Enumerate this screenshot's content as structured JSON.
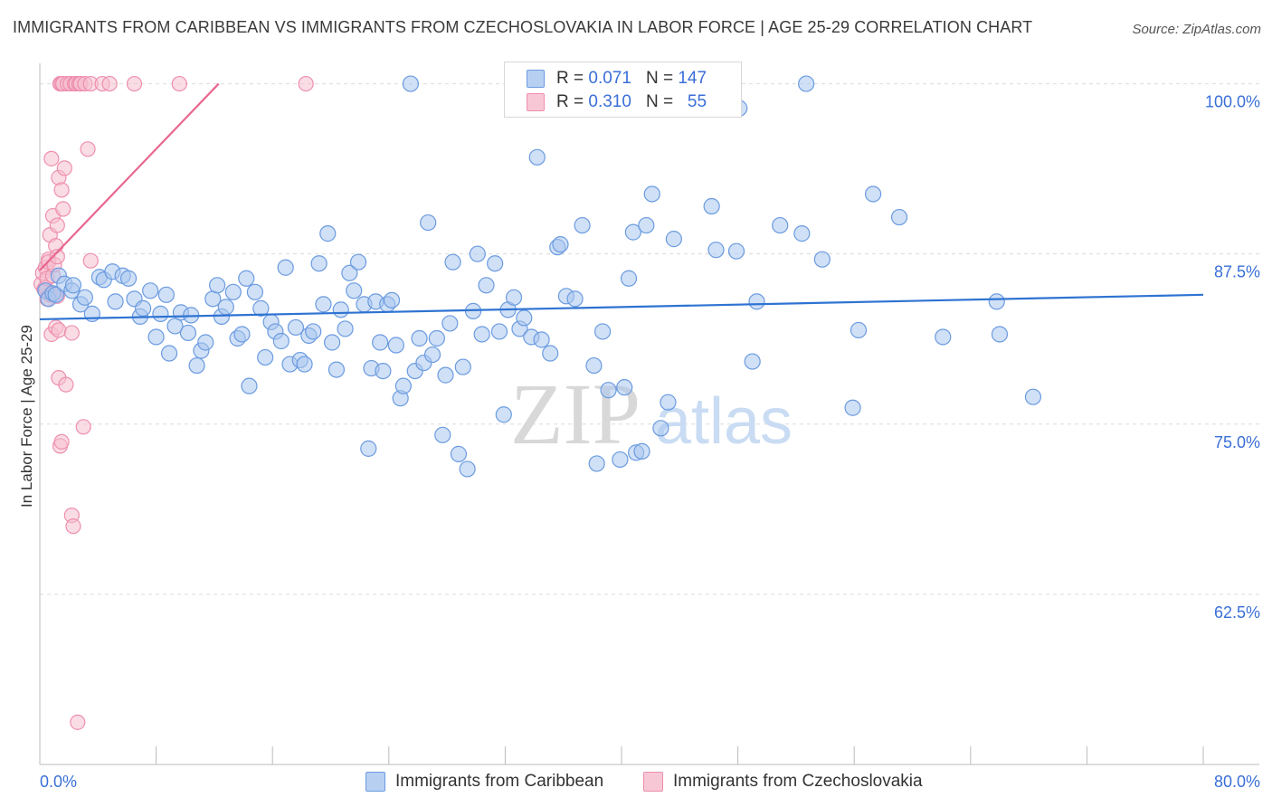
{
  "header": {
    "title": "IMMIGRANTS FROM CARIBBEAN VS IMMIGRANTS FROM CZECHOSLOVAKIA IN LABOR FORCE | AGE 25-29 CORRELATION CHART",
    "source": "Source: ZipAtlas.com"
  },
  "legend": {
    "r_label": "R =",
    "n_label": "N =",
    "caribbean": {
      "r": "0.071",
      "n": "147"
    },
    "czech": {
      "r": "0.310",
      "n": "55"
    }
  },
  "bottom_legend": {
    "caribbean": "Immigrants from Caribbean",
    "czech": "Immigrants from Czechoslovakia"
  },
  "watermark": {
    "zip": "ZIP",
    "atlas": "atlas"
  },
  "colors": {
    "caribbean_fill": "#a9c6ee",
    "caribbean_stroke": "#6b9be0",
    "caribbean_line": "#2e73d2",
    "czech_fill": "#f6bfd0",
    "czech_stroke": "#ee8fae",
    "czech_line": "#e8678f",
    "tick_label": "#3a6fd8",
    "grid": "#dcdcdc"
  },
  "chart_data": {
    "type": "scatter",
    "title": "IMMIGRANTS FROM CARIBBEAN VS IMMIGRANTS FROM CZECHOSLOVAKIA IN LABOR FORCE | AGE 25-29 CORRELATION CHART",
    "xlabel": "",
    "ylabel": "In Labor Force | Age 25-29",
    "xlim": [
      0,
      80
    ],
    "ylim": [
      50,
      101.5
    ],
    "x_tick_labels": [
      "0.0%",
      "80.0%"
    ],
    "y_ticks": [
      62.5,
      75,
      87.5,
      100
    ],
    "y_tick_labels": [
      "62.5%",
      "75.0%",
      "87.5%",
      "100.0%"
    ],
    "grid": true,
    "series": [
      {
        "name": "Immigrants from Caribbean",
        "r": 0.071,
        "n": 147,
        "trend": {
          "x": [
            0,
            80
          ],
          "y": [
            82.7,
            84.5
          ]
        },
        "points": [
          [
            0.4,
            84.8
          ],
          [
            0.6,
            84.2
          ],
          [
            0.9,
            84.6
          ],
          [
            1.1,
            84.5
          ],
          [
            1.3,
            85.9
          ],
          [
            1.7,
            85.3
          ],
          [
            2.2,
            84.8
          ],
          [
            2.3,
            85.2
          ],
          [
            2.8,
            83.8
          ],
          [
            3.1,
            84.3
          ],
          [
            3.6,
            83.1
          ],
          [
            4.1,
            85.8
          ],
          [
            4.4,
            85.6
          ],
          [
            5.0,
            86.2
          ],
          [
            5.2,
            84.0
          ],
          [
            5.7,
            85.9
          ],
          [
            6.1,
            85.7
          ],
          [
            6.5,
            84.2
          ],
          [
            6.9,
            82.9
          ],
          [
            7.1,
            83.5
          ],
          [
            7.6,
            84.8
          ],
          [
            8.0,
            81.4
          ],
          [
            8.3,
            83.1
          ],
          [
            8.7,
            84.5
          ],
          [
            8.9,
            80.2
          ],
          [
            9.3,
            82.2
          ],
          [
            9.7,
            83.2
          ],
          [
            10.2,
            81.7
          ],
          [
            10.4,
            83.0
          ],
          [
            10.8,
            79.3
          ],
          [
            11.1,
            80.4
          ],
          [
            11.4,
            81.0
          ],
          [
            11.9,
            84.2
          ],
          [
            12.2,
            85.2
          ],
          [
            12.5,
            82.9
          ],
          [
            12.8,
            83.6
          ],
          [
            13.3,
            84.7
          ],
          [
            13.6,
            81.3
          ],
          [
            13.9,
            81.6
          ],
          [
            14.2,
            85.7
          ],
          [
            14.4,
            77.8
          ],
          [
            14.8,
            84.7
          ],
          [
            15.2,
            83.5
          ],
          [
            15.5,
            79.9
          ],
          [
            15.9,
            82.5
          ],
          [
            16.2,
            81.8
          ],
          [
            16.6,
            81.1
          ],
          [
            16.9,
            86.5
          ],
          [
            17.2,
            79.4
          ],
          [
            17.6,
            82.1
          ],
          [
            17.9,
            79.7
          ],
          [
            18.2,
            79.4
          ],
          [
            18.5,
            81.5
          ],
          [
            18.8,
            81.8
          ],
          [
            19.2,
            86.8
          ],
          [
            19.5,
            83.8
          ],
          [
            19.8,
            89.0
          ],
          [
            20.1,
            81.0
          ],
          [
            20.4,
            79.0
          ],
          [
            20.7,
            83.4
          ],
          [
            21.0,
            82.0
          ],
          [
            21.3,
            86.1
          ],
          [
            21.6,
            84.8
          ],
          [
            21.9,
            86.9
          ],
          [
            22.3,
            83.8
          ],
          [
            22.6,
            73.2
          ],
          [
            22.8,
            79.1
          ],
          [
            23.1,
            84.0
          ],
          [
            23.4,
            81.0
          ],
          [
            23.6,
            78.9
          ],
          [
            23.9,
            83.8
          ],
          [
            24.2,
            84.1
          ],
          [
            24.5,
            80.8
          ],
          [
            24.8,
            76.9
          ],
          [
            25.0,
            77.8
          ],
          [
            25.5,
            100.0
          ],
          [
            25.8,
            78.9
          ],
          [
            26.1,
            81.3
          ],
          [
            26.4,
            79.5
          ],
          [
            26.7,
            89.8
          ],
          [
            27.0,
            80.1
          ],
          [
            27.3,
            81.3
          ],
          [
            27.7,
            74.2
          ],
          [
            27.9,
            78.6
          ],
          [
            28.2,
            82.4
          ],
          [
            28.4,
            86.9
          ],
          [
            28.8,
            72.8
          ],
          [
            29.1,
            79.2
          ],
          [
            29.4,
            71.7
          ],
          [
            29.8,
            83.3
          ],
          [
            30.1,
            87.5
          ],
          [
            30.4,
            81.6
          ],
          [
            30.7,
            85.2
          ],
          [
            31.3,
            86.8
          ],
          [
            31.6,
            81.8
          ],
          [
            31.9,
            75.7
          ],
          [
            32.2,
            83.4
          ],
          [
            32.6,
            84.3
          ],
          [
            33.0,
            82.0
          ],
          [
            33.3,
            82.8
          ],
          [
            33.8,
            81.4
          ],
          [
            34.2,
            94.6
          ],
          [
            34.5,
            81.2
          ],
          [
            35.1,
            80.2
          ],
          [
            35.6,
            88.0
          ],
          [
            35.8,
            88.2
          ],
          [
            36.2,
            84.4
          ],
          [
            36.8,
            84.2
          ],
          [
            37.3,
            89.6
          ],
          [
            38.1,
            79.3
          ],
          [
            38.3,
            72.1
          ],
          [
            38.7,
            81.8
          ],
          [
            39.1,
            77.5
          ],
          [
            39.9,
            72.4
          ],
          [
            40.2,
            77.7
          ],
          [
            40.5,
            85.7
          ],
          [
            40.8,
            89.1
          ],
          [
            41.0,
            72.9
          ],
          [
            41.4,
            73.0
          ],
          [
            41.7,
            89.6
          ],
          [
            42.1,
            91.9
          ],
          [
            42.7,
            74.7
          ],
          [
            43.2,
            76.6
          ],
          [
            43.6,
            88.6
          ],
          [
            46.2,
            91.0
          ],
          [
            46.5,
            87.8
          ],
          [
            47.9,
            87.7
          ],
          [
            48.1,
            98.2
          ],
          [
            49.0,
            79.6
          ],
          [
            49.3,
            84.0
          ],
          [
            50.9,
            89.6
          ],
          [
            52.4,
            89.0
          ],
          [
            52.7,
            100.0
          ],
          [
            53.8,
            87.1
          ],
          [
            55.9,
            76.2
          ],
          [
            56.3,
            81.9
          ],
          [
            57.3,
            91.9
          ],
          [
            59.1,
            90.2
          ],
          [
            62.1,
            81.4
          ],
          [
            65.8,
            84.0
          ],
          [
            66.0,
            81.6
          ],
          [
            68.3,
            77.0
          ]
        ]
      },
      {
        "name": "Immigrants from Czechoslovakia",
        "r": 0.31,
        "n": 55,
        "trend": {
          "x": [
            0,
            12.3
          ],
          "y": [
            86.3,
            100.0
          ]
        },
        "points": [
          [
            0.1,
            85.3
          ],
          [
            0.2,
            86.1
          ],
          [
            0.3,
            84.9
          ],
          [
            0.4,
            86.5
          ],
          [
            0.4,
            85.0
          ],
          [
            0.5,
            85.7
          ],
          [
            0.5,
            84.2
          ],
          [
            0.6,
            87.1
          ],
          [
            0.6,
            86.9
          ],
          [
            0.7,
            84.5
          ],
          [
            0.7,
            88.9
          ],
          [
            0.8,
            94.5
          ],
          [
            0.8,
            81.6
          ],
          [
            0.9,
            90.3
          ],
          [
            0.9,
            85.9
          ],
          [
            1.0,
            84.6
          ],
          [
            1.0,
            86.7
          ],
          [
            1.1,
            88.1
          ],
          [
            1.1,
            82.1
          ],
          [
            1.2,
            89.6
          ],
          [
            1.2,
            87.3
          ],
          [
            1.2,
            84.4
          ],
          [
            1.3,
            93.1
          ],
          [
            1.3,
            81.9
          ],
          [
            1.3,
            78.4
          ],
          [
            1.4,
            100.0
          ],
          [
            1.4,
            73.4
          ],
          [
            1.5,
            100.0
          ],
          [
            1.5,
            92.2
          ],
          [
            1.5,
            73.7
          ],
          [
            1.6,
            90.8
          ],
          [
            1.6,
            100.0
          ],
          [
            1.7,
            93.8
          ],
          [
            1.8,
            77.9
          ],
          [
            1.9,
            100.0
          ],
          [
            2.1,
            100.0
          ],
          [
            2.2,
            68.3
          ],
          [
            2.2,
            81.7
          ],
          [
            2.3,
            67.5
          ],
          [
            2.4,
            100.0
          ],
          [
            2.5,
            100.0
          ],
          [
            2.6,
            53.1
          ],
          [
            2.7,
            100.0
          ],
          [
            2.8,
            100.0
          ],
          [
            2.8,
            100.0
          ],
          [
            3.0,
            74.8
          ],
          [
            3.1,
            100.0
          ],
          [
            3.3,
            95.2
          ],
          [
            3.5,
            87.0
          ],
          [
            3.5,
            100.0
          ],
          [
            4.3,
            100.0
          ],
          [
            4.8,
            100.0
          ],
          [
            6.5,
            100.0
          ],
          [
            9.6,
            100.0
          ],
          [
            18.3,
            100.0
          ]
        ]
      }
    ]
  }
}
